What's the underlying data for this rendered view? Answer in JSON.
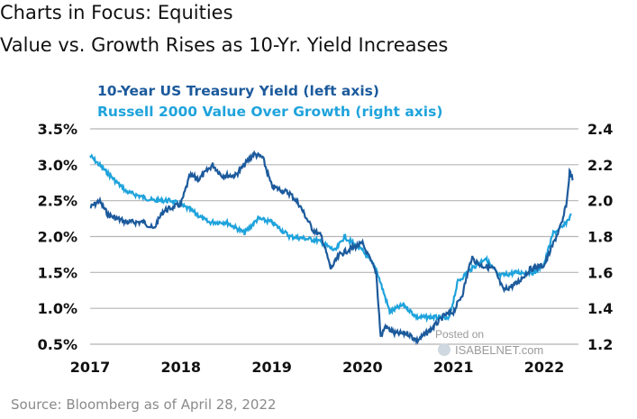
{
  "header": {
    "title": "Charts in Focus: Equities",
    "subtitle": "Value vs. Growth Rises as 10-Yr. Yield Increases"
  },
  "footer": {
    "source": "Source: Bloomberg as of April 28, 2022"
  },
  "watermark": {
    "line1": "Posted on",
    "line2": "ISABELNET.com"
  },
  "colors": {
    "yield": "#1c5a9c",
    "ratio": "#1fa3dc",
    "grid": "#b5b5b5"
  },
  "chart_data": {
    "type": "line",
    "title": "Value vs. Growth Rises as 10-Yr. Yield Increases",
    "xlabel": "",
    "xlim": [
      2017,
      2022.33
    ],
    "x_ticks": [
      "2017",
      "2018",
      "2019",
      "2020",
      "2021",
      "2022"
    ],
    "y_left": {
      "label": "10-Year US Treasury Yield (%)",
      "ylim": [
        0.5,
        3.5
      ],
      "ticks": [
        "0.5%",
        "1.0%",
        "1.5%",
        "2.0%",
        "2.5%",
        "3.0%",
        "3.5%"
      ]
    },
    "y_right": {
      "label": "Russell 2000 Value/Growth",
      "ylim": [
        1.2,
        2.4
      ],
      "ticks": [
        "1.2",
        "1.4",
        "1.6",
        "1.8",
        "2.0",
        "2.2",
        "2.4"
      ]
    },
    "grid": true,
    "legend_position": "top-left",
    "series": [
      {
        "name": "10-Year US Treasury Yield (left axis)",
        "axis": "left",
        "x": [
          2017.0,
          2017.1,
          2017.2,
          2017.4,
          2017.6,
          2017.7,
          2017.8,
          2018.0,
          2018.1,
          2018.2,
          2018.35,
          2018.45,
          2018.6,
          2018.8,
          2018.9,
          2019.0,
          2019.2,
          2019.3,
          2019.45,
          2019.55,
          2019.65,
          2019.75,
          2019.9,
          2020.0,
          2020.15,
          2020.2,
          2020.25,
          2020.35,
          2020.5,
          2020.6,
          2020.75,
          2020.9,
          2021.0,
          2021.1,
          2021.2,
          2021.3,
          2021.45,
          2021.55,
          2021.7,
          2021.85,
          2022.0,
          2022.1,
          2022.2,
          2022.25,
          2022.28,
          2022.32
        ],
        "values": [
          2.4,
          2.5,
          2.3,
          2.2,
          2.2,
          2.1,
          2.35,
          2.45,
          2.85,
          2.8,
          3.0,
          2.85,
          2.85,
          3.15,
          3.1,
          2.7,
          2.6,
          2.45,
          2.1,
          2.0,
          1.55,
          1.75,
          1.85,
          1.9,
          1.5,
          0.6,
          0.75,
          0.65,
          0.65,
          0.55,
          0.7,
          0.9,
          0.95,
          1.2,
          1.7,
          1.6,
          1.55,
          1.25,
          1.35,
          1.55,
          1.6,
          1.9,
          2.2,
          2.5,
          2.9,
          2.8
        ]
      },
      {
        "name": "Russell 2000 Value Over Growth (right axis)",
        "axis": "right",
        "x": [
          2017.0,
          2017.2,
          2017.4,
          2017.7,
          2017.9,
          2018.1,
          2018.3,
          2018.5,
          2018.6,
          2018.7,
          2018.85,
          2019.0,
          2019.2,
          2019.5,
          2019.7,
          2019.8,
          2020.0,
          2020.15,
          2020.3,
          2020.45,
          2020.6,
          2020.8,
          2020.95,
          2021.05,
          2021.2,
          2021.35,
          2021.5,
          2021.7,
          2021.9,
          2022.0,
          2022.1,
          2022.2,
          2022.3
        ],
        "values": [
          2.25,
          2.15,
          2.05,
          2.0,
          2.0,
          1.95,
          1.88,
          1.88,
          1.85,
          1.82,
          1.9,
          1.88,
          1.8,
          1.78,
          1.72,
          1.8,
          1.72,
          1.62,
          1.38,
          1.42,
          1.35,
          1.35,
          1.34,
          1.55,
          1.62,
          1.68,
          1.58,
          1.6,
          1.6,
          1.65,
          1.82,
          1.85,
          1.92
        ]
      }
    ]
  }
}
